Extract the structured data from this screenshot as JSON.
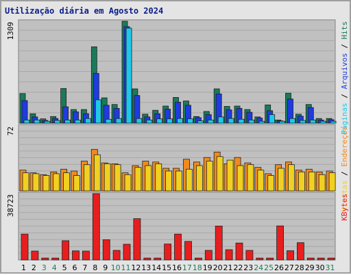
{
  "chart_data": {
    "type": "bar",
    "title": "Utilização diária em Agosto 2024",
    "categories": [
      "1",
      "2",
      "3",
      "4",
      "5",
      "6",
      "7",
      "8",
      "9",
      "10",
      "11",
      "12",
      "13",
      "14",
      "15",
      "16",
      "17",
      "18",
      "19",
      "20",
      "21",
      "22",
      "23",
      "24",
      "25",
      "26",
      "27",
      "28",
      "29",
      "30",
      "31"
    ],
    "weekend_days": [
      "3",
      "4",
      "10",
      "11",
      "17",
      "18",
      "24",
      "25",
      "31"
    ],
    "colors": {
      "title": "#0a1c8c",
      "hits": "#1a7a5a",
      "arquivos": "#1e3ce0",
      "paginas": "#1ec8e8",
      "visitas": "#f0d020",
      "enderecos": "#f08a20",
      "kbytes": "#e81e1e",
      "weekday_label": "#000000",
      "weekend_label": "#1a7a5a",
      "plot_bg": "#c0c0c0",
      "frame_bg": "#e4e4e4"
    },
    "panels": [
      {
        "ymax_label": "1309",
        "ymax": 1309,
        "legend": [
          "Hits",
          "Arquivos",
          "Páginas"
        ],
        "legend_separator": "/",
        "series": [
          {
            "name": "Hits",
            "values": [
              380,
              120,
              55,
              85,
              445,
              175,
              175,
              980,
              325,
              240,
              1309,
              440,
              115,
              165,
              220,
              330,
              285,
              85,
              150,
              440,
              215,
              220,
              175,
              80,
              235,
              40,
              385,
              115,
              240,
              60,
              60
            ]
          },
          {
            "name": "Arquivos",
            "values": [
              290,
              80,
              35,
              60,
              210,
              145,
              120,
              640,
              230,
              190,
              1240,
              355,
              80,
              120,
              180,
              270,
              230,
              70,
              110,
              375,
              170,
              190,
              140,
              65,
              160,
              30,
              310,
              90,
              200,
              40,
              45
            ]
          },
          {
            "name": "Páginas",
            "values": [
              40,
              40,
              25,
              35,
              40,
              40,
              60,
              300,
              50,
              60,
              1220,
              60,
              40,
              55,
              55,
              60,
              55,
              30,
              40,
              80,
              60,
              50,
              40,
              25,
              110,
              25,
              60,
              35,
              40,
              25,
              25
            ]
          }
        ]
      },
      {
        "ymax_label": "72",
        "ymax": 72,
        "legend": [
          "Endereços",
          "Visitas"
        ],
        "legend_separator": "/",
        "series": [
          {
            "name": "Endereços",
            "values": [
              23,
              20,
              18,
              21,
              24,
              22,
              33,
              46,
              31,
              30,
              20,
              28,
              33,
              32,
              25,
              25,
              35,
              32,
              37,
              43,
              30,
              37,
              31,
              26,
              19,
              29,
              32,
              23,
              24,
              21,
              22
            ]
          },
          {
            "name": "Visitas",
            "values": [
              20,
              19,
              17,
              19,
              20,
              17,
              29,
              40,
              30,
              29,
              18,
              26,
              28,
              30,
              22,
              22,
              24,
              28,
              33,
              38,
              34,
              28,
              29,
              23,
              17,
              25,
              29,
              21,
              21,
              18,
              20
            ]
          }
        ]
      },
      {
        "ymax_label": "38723",
        "ymax": 38723,
        "legend": [
          "KBytes"
        ],
        "legend_separator": "/",
        "series": [
          {
            "name": "KBytes",
            "values": [
              15100,
              5200,
              1100,
              1100,
              11200,
              5300,
              5200,
              38723,
              11800,
              5600,
              9200,
              24100,
              1100,
              1100,
              9300,
              15100,
              10800,
              1100,
              5600,
              19800,
              6000,
              9900,
              5600,
              1100,
              1100,
              19900,
              5400,
              10100,
              1100,
              1100,
              1100
            ]
          }
        ]
      }
    ]
  }
}
